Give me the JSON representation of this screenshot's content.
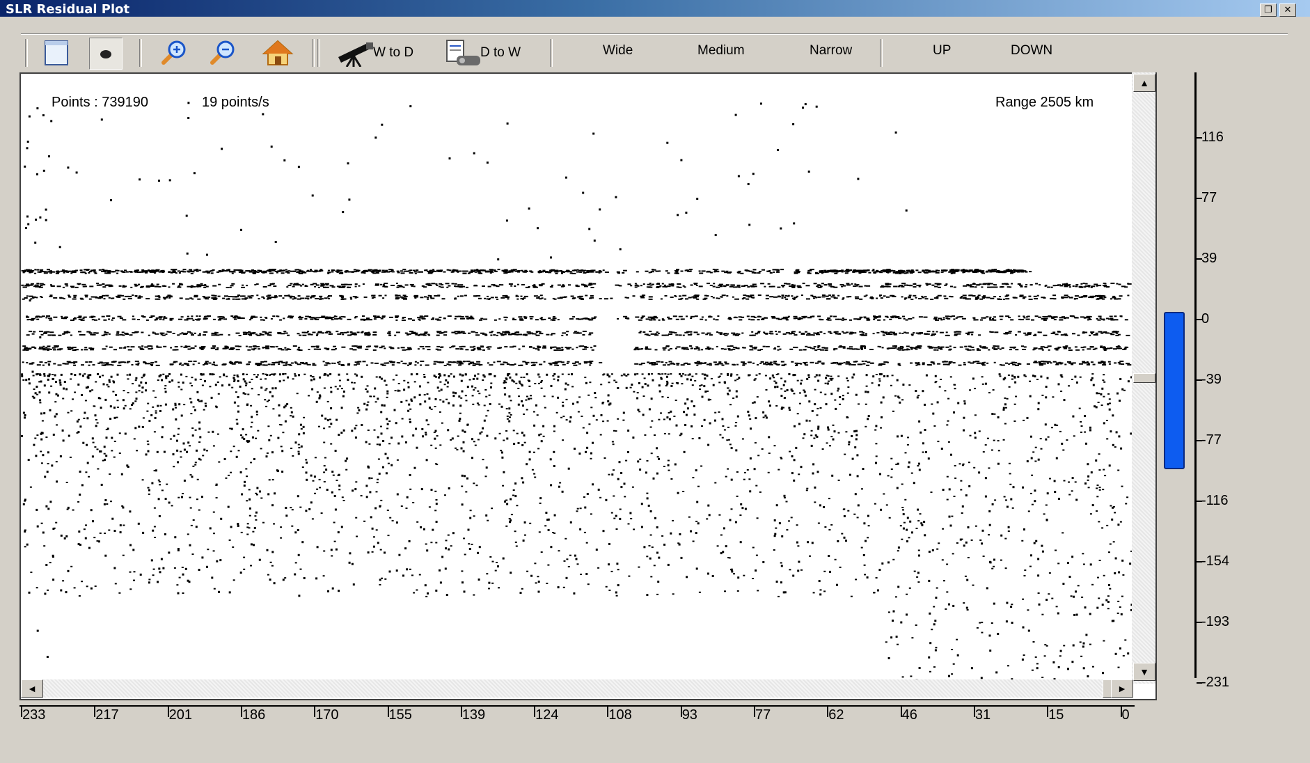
{
  "window": {
    "title": "SLR Residual Plot",
    "restore_glyph": "❐",
    "close_glyph": "✕"
  },
  "toolbar": {
    "new_icon": "page-icon",
    "point_icon": "point-size-icon",
    "zoom_in_icon": "zoom-in-icon",
    "zoom_out_icon": "zoom-out-icon",
    "home_icon": "home-icon",
    "w_to_d_icon": "telescope-icon",
    "w_to_d_label": "W to D",
    "d_to_w_icon": "document-icon",
    "d_to_w_label": "D to W",
    "wide_label": "Wide",
    "medium_label": "Medium",
    "narrow_label": "Narrow",
    "up_label": "UP",
    "down_label": "DOWN"
  },
  "plot": {
    "points_text": "Points : 739190",
    "rate_text": "19 points/s",
    "range_text": "Range 2505 km"
  },
  "scrollbars": {
    "up_arrow": "▲",
    "down_arrow": "▼",
    "left_arrow": "◄",
    "right_arrow": "►"
  },
  "y_axis": {
    "ticks": [
      "116",
      "77",
      "39",
      "0",
      "-39",
      "-77",
      "-116",
      "-154",
      "-193",
      "-231"
    ],
    "selected_range": [
      -95,
      5
    ]
  },
  "x_axis": {
    "ticks": [
      "233",
      "217",
      "201",
      "186",
      "170",
      "155",
      "139",
      "124",
      "108",
      "93",
      "77",
      "62",
      "46",
      "31",
      "15",
      "0"
    ]
  }
}
